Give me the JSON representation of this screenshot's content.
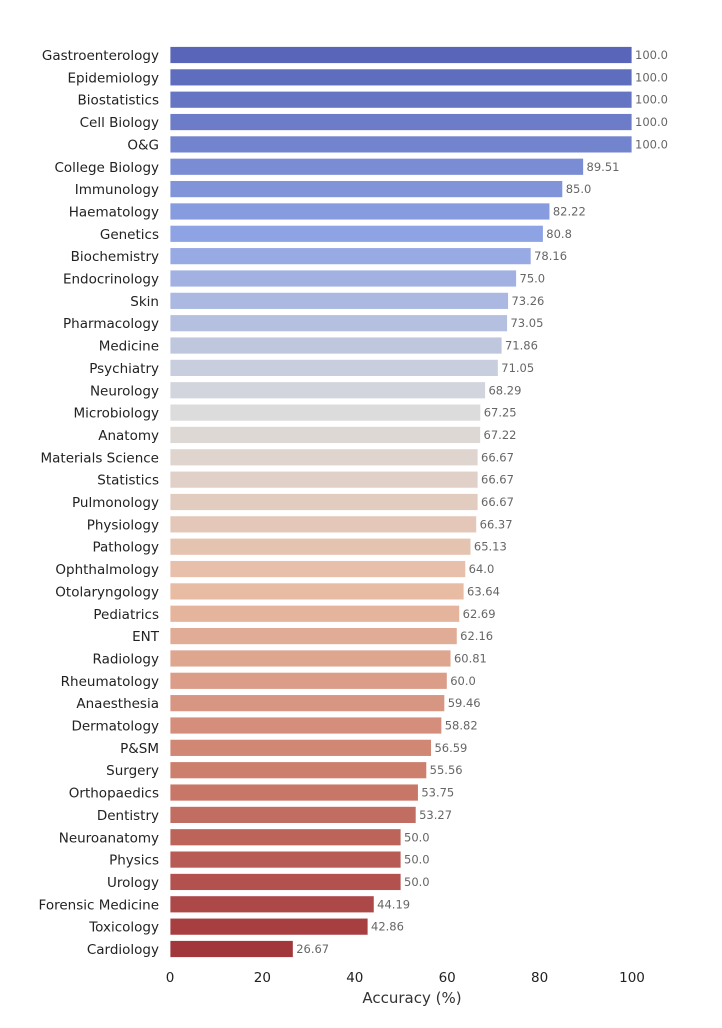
{
  "chart_data": {
    "type": "bar",
    "orientation": "horizontal",
    "title": "",
    "xlabel": "Accuracy (%)",
    "ylabel": "",
    "xlim": [
      0,
      100
    ],
    "xticks": [
      "0",
      "20",
      "40",
      "60",
      "80",
      "100"
    ],
    "grid": false,
    "colormap": "coolwarm",
    "palette": [
      "#5865b8",
      "#8ea3e4",
      "#dcdcdc",
      "#e8bba3",
      "#cd7f6d",
      "#a1363b"
    ],
    "categories": [
      "Gastroenterology",
      "Epidemiology",
      "Biostatistics",
      "Cell Biology",
      "O&G",
      "College Biology",
      "Immunology",
      "Haematology",
      "Genetics",
      "Biochemistry",
      "Endocrinology",
      "Skin",
      "Pharmacology",
      "Medicine",
      "Psychiatry",
      "Neurology",
      "Microbiology",
      "Anatomy",
      "Materials Science",
      "Statistics",
      "Pulmonology",
      "Physiology",
      "Pathology",
      "Ophthalmology",
      "Otolaryngology",
      "Pediatrics",
      "ENT",
      "Radiology",
      "Rheumatology",
      "Anaesthesia",
      "Dermatology",
      "P&SM",
      "Surgery",
      "Orthopaedics",
      "Dentistry",
      "Neuroanatomy",
      "Physics",
      "Urology",
      "Forensic Medicine",
      "Toxicology",
      "Cardiology"
    ],
    "values": [
      100.0,
      100.0,
      100.0,
      100.0,
      100.0,
      89.51,
      85.0,
      82.22,
      80.8,
      78.16,
      75.0,
      73.26,
      73.05,
      71.86,
      71.05,
      68.29,
      67.25,
      67.22,
      66.67,
      66.67,
      66.67,
      66.37,
      65.13,
      64.0,
      63.64,
      62.69,
      62.16,
      60.81,
      60.0,
      59.46,
      58.82,
      56.59,
      55.56,
      53.75,
      53.27,
      50.0,
      50.0,
      50.0,
      44.19,
      42.86,
      26.67
    ],
    "value_labels": [
      "100.0",
      "100.0",
      "100.0",
      "100.0",
      "100.0",
      "89.51",
      "85.0",
      "82.22",
      "80.8",
      "78.16",
      "75.0",
      "73.26",
      "73.05",
      "71.86",
      "71.05",
      "68.29",
      "67.25",
      "67.22",
      "66.67",
      "66.67",
      "66.67",
      "66.37",
      "65.13",
      "64.0",
      "63.64",
      "62.69",
      "62.16",
      "60.81",
      "60.0",
      "59.46",
      "58.82",
      "56.59",
      "55.56",
      "53.75",
      "53.27",
      "50.0",
      "50.0",
      "50.0",
      "44.19",
      "42.86",
      "26.67"
    ]
  }
}
